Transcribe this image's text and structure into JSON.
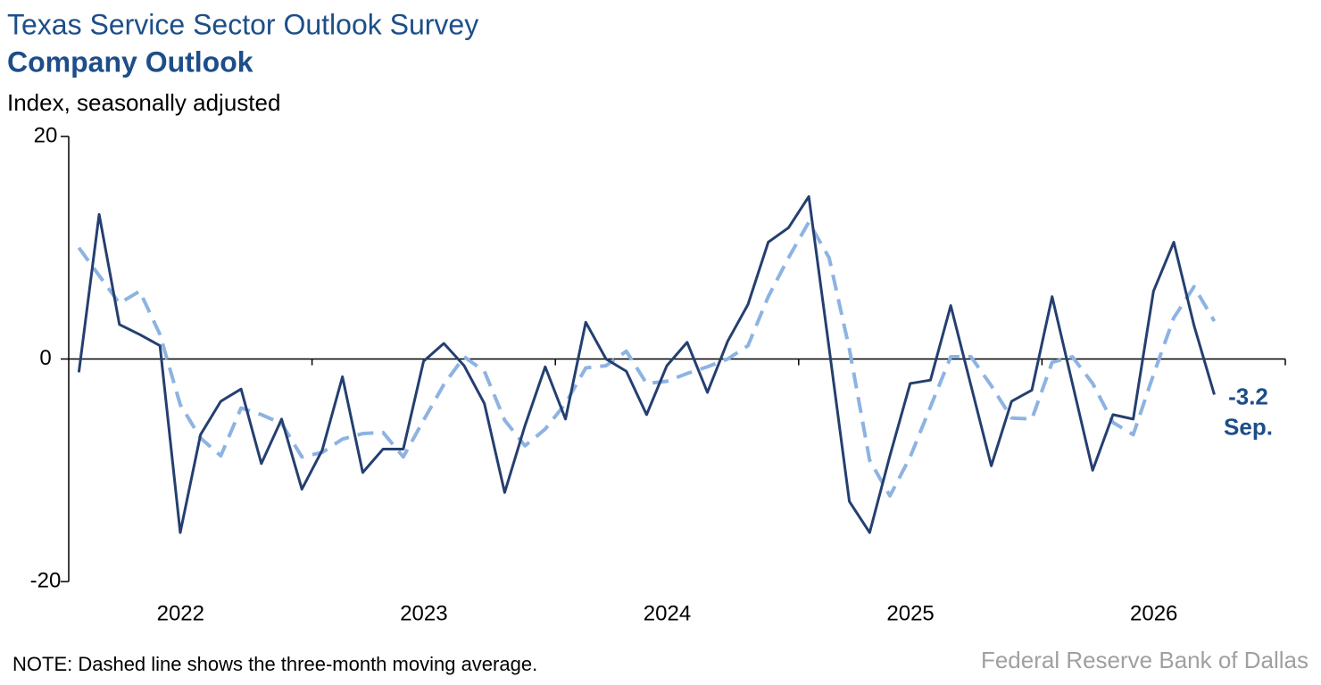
{
  "chart_data": {
    "type": "line",
    "title": "Texas Service Sector Outlook Survey",
    "subtitle": "Company Outlook",
    "y_label": "Index, seasonally adjusted",
    "note": "NOTE: Dashed line shows the three-month moving average.",
    "source": "Federal Reserve Bank of Dallas",
    "annotation": "Sep.",
    "categories": [
      null,
      null,
      null,
      null,
      null,
      null,
      null,
      null,
      null,
      null,
      null,
      null,
      null,
      null,
      null,
      null,
      null,
      null,
      null,
      null,
      null,
      null,
      null,
      null,
      null,
      null,
      null,
      null,
      null,
      null,
      null,
      null,
      null,
      null,
      null,
      null,
      null,
      null,
      null,
      null,
      null,
      null,
      null,
      null,
      null,
      null,
      null,
      null,
      null,
      null,
      null,
      null,
      null,
      null,
      null,
      null,
      null,
      null,
      null,
      null
    ],
    "xtick_labels": [
      "2022",
      "2023",
      "2024",
      "2025",
      "2026"
    ],
    "ylim": [
      -20,
      20
    ],
    "yticks": [
      -20,
      0,
      20
    ],
    "series": [
      {
        "name": "Company outlook",
        "color": "#243f70",
        "dash": false,
        "values": [
          -1.2,
          13.0,
          3.1,
          2.2,
          1.2,
          -15.6,
          -6.8,
          -3.8,
          -2.7,
          -9.4,
          -5.4,
          -11.7,
          -8.2,
          -1.6,
          -10.2,
          -8.1,
          -8.1,
          -0.2,
          1.4,
          -0.6,
          -4.0,
          -12.0,
          -6.0,
          -0.7,
          -5.4,
          3.3,
          0.0,
          -1.1,
          -5.0,
          -0.6,
          1.5,
          -3.0,
          1.6,
          4.9,
          10.5,
          11.8,
          14.6,
          1.0,
          -12.8,
          -15.6,
          -8.7,
          -2.2,
          -1.9,
          4.8,
          -2.4,
          -9.6,
          -3.8,
          -2.8,
          5.6,
          -2.2,
          -10.0,
          -5.0,
          -5.4,
          6.1,
          10.5,
          3.0,
          -3.2,
          null,
          null,
          null
        ]
      },
      {
        "name": "Three-month moving average",
        "color": "#8db3e2",
        "dash": true,
        "values": [
          10.0,
          7.5,
          5.0,
          6.1,
          2.2,
          -4.1,
          -7.1,
          -8.7,
          -4.4,
          -5.0,
          -5.8,
          -8.8,
          -8.4,
          -7.2,
          -6.7,
          -6.6,
          -8.8,
          -5.5,
          -2.3,
          0.2,
          -1.1,
          -5.5,
          -7.8,
          -6.3,
          -4.0,
          -0.8,
          -0.6,
          0.7,
          -2.2,
          -2.0,
          -1.3,
          -0.7,
          0.0,
          1.2,
          5.6,
          9.1,
          12.3,
          9.1,
          0.9,
          -9.1,
          -12.3,
          -8.8,
          -4.3,
          0.2,
          0.2,
          -2.4,
          -5.3,
          -5.4,
          -0.3,
          0.2,
          -2.2,
          -5.7,
          -6.8,
          -1.4,
          3.7,
          6.5,
          3.4,
          null,
          null,
          null
        ]
      }
    ]
  }
}
